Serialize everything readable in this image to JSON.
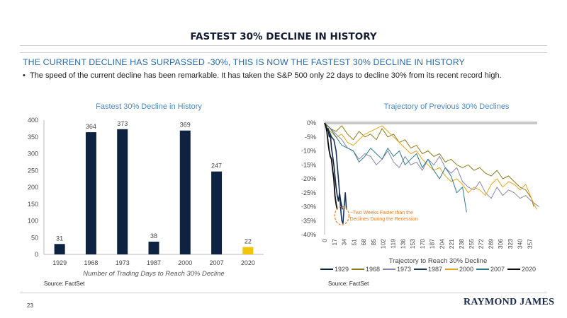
{
  "header": {
    "title": "FASTEST 30% DECLINE IN HISTORY",
    "subtitle": "THE CURRENT DECLINE HAS SURPASSED -30%, THIS IS NOW THE FASTEST 30% DECLINE IN HISTORY",
    "bullet": "The speed of the current decline has been remarkable. It has taken the S&P 500 only 22 days to decline 30% from its recent record high."
  },
  "colors": {
    "navy": "#0e2341",
    "gold": "#f1c40f",
    "accent_blue": "#2b6aa8",
    "zero_line": "#c8c8c8"
  },
  "footer": {
    "page_number": "23",
    "logo_text": "RAYMOND JAMES"
  },
  "chart_data": [
    {
      "type": "bar",
      "title": "Fastest 30% Decline in History",
      "xlabel": "Number of Trading Days to Reach 30% Decline",
      "ylabel": "",
      "categories": [
        "1929",
        "1968",
        "1973",
        "1987",
        "2000",
        "2007",
        "2020"
      ],
      "values": [
        31,
        364,
        373,
        38,
        369,
        247,
        22
      ],
      "data_labels": [
        "31",
        "364",
        "373",
        "38",
        "369",
        "247",
        "22"
      ],
      "bar_colors": [
        "#0e2341",
        "#0e2341",
        "#0e2341",
        "#0e2341",
        "#0e2341",
        "#0e2341",
        "#f1c40f"
      ],
      "ylim": [
        0,
        400
      ],
      "yticks": [
        "0",
        "50",
        "100",
        "150",
        "200",
        "250",
        "300",
        "350",
        "400"
      ],
      "grid": false,
      "source": "Source: FactSet"
    },
    {
      "type": "line",
      "title": "Trajectory of Previous 30% Declines",
      "xlabel": "Trajectory to Reach 30% Decline",
      "ylabel": "",
      "xlim": [
        0,
        370
      ],
      "ylim": [
        -40,
        0
      ],
      "xticks": [
        "0",
        "17",
        "34",
        "51",
        "68",
        "85",
        "102",
        "119",
        "136",
        "153",
        "170",
        "187",
        "204",
        "221",
        "238",
        "255",
        "272",
        "289",
        "306",
        "323",
        "340",
        "357"
      ],
      "yticks": [
        "0%",
        "-5%",
        "-10%",
        "-15%",
        "-20%",
        "-25%",
        "-30%",
        "-35%",
        "-40%"
      ],
      "legend_position": "bottom",
      "annotation": "~Two Weeks Faster than the Declines During the Recession",
      "source": "Source: FactSet",
      "series": [
        {
          "name": "1929",
          "color": "#0e2341",
          "width": 1.6,
          "x": [
            0,
            2,
            4,
            6,
            8,
            10,
            12,
            14,
            16,
            18,
            20,
            22,
            24,
            26,
            28,
            31
          ],
          "y": [
            0,
            -1,
            -3,
            -2,
            -5,
            -4,
            -9,
            -12,
            -15,
            -19,
            -23,
            -26,
            -28,
            -25,
            -28,
            -31
          ]
        },
        {
          "name": "1968",
          "color": "#8a7a1c",
          "width": 1.0,
          "x": [
            0,
            10,
            20,
            30,
            40,
            50,
            60,
            70,
            80,
            90,
            100,
            110,
            120,
            130,
            140,
            150,
            160,
            170,
            180,
            190,
            200,
            210,
            220,
            230,
            240,
            250,
            260,
            270,
            280,
            290,
            300,
            310,
            320,
            330,
            340,
            350,
            360,
            364
          ],
          "y": [
            0,
            -2,
            -3,
            -1,
            -4,
            -6,
            -3,
            -5,
            -4,
            -6,
            -2,
            -5,
            -4,
            -7,
            -6,
            -9,
            -8,
            -11,
            -10,
            -12,
            -11,
            -14,
            -13,
            -15,
            -16,
            -15,
            -17,
            -16,
            -18,
            -19,
            -17,
            -20,
            -19,
            -21,
            -23,
            -24,
            -27,
            -30
          ]
        },
        {
          "name": "1973",
          "color": "#8a84a8",
          "width": 1.0,
          "x": [
            0,
            10,
            20,
            30,
            40,
            50,
            60,
            70,
            80,
            90,
            100,
            110,
            120,
            130,
            140,
            150,
            160,
            170,
            180,
            190,
            200,
            210,
            220,
            230,
            240,
            250,
            260,
            270,
            280,
            290,
            300,
            310,
            320,
            330,
            340,
            350,
            360,
            373
          ],
          "y": [
            0,
            -2,
            -4,
            -6,
            -9,
            -10,
            -13,
            -11,
            -12,
            -15,
            -13,
            -10,
            -14,
            -16,
            -12,
            -15,
            -14,
            -17,
            -13,
            -15,
            -12,
            -16,
            -18,
            -16,
            -21,
            -23,
            -24,
            -21,
            -25,
            -27,
            -23,
            -26,
            -24,
            -25,
            -27,
            -26,
            -28,
            -30
          ]
        },
        {
          "name": "1987",
          "color": "#16345a",
          "width": 1.6,
          "x": [
            0,
            4,
            8,
            12,
            16,
            18,
            20,
            22,
            24,
            26,
            28,
            30,
            32,
            34,
            36,
            38
          ],
          "y": [
            0,
            -2,
            -3,
            -5,
            -6,
            -8,
            -10,
            -15,
            -20,
            -25,
            -31,
            -35,
            -36,
            -30,
            -25,
            -31
          ]
        },
        {
          "name": "2000",
          "color": "#e2a623",
          "width": 1.0,
          "x": [
            0,
            10,
            20,
            30,
            40,
            50,
            60,
            70,
            80,
            90,
            100,
            110,
            120,
            130,
            140,
            150,
            160,
            170,
            180,
            190,
            200,
            210,
            220,
            230,
            240,
            250,
            260,
            270,
            280,
            290,
            300,
            310,
            320,
            330,
            340,
            350,
            360,
            369
          ],
          "y": [
            0,
            -3,
            -5,
            -4,
            -7,
            -8,
            -6,
            -4,
            -3,
            -2,
            -1,
            -3,
            -5,
            -7,
            -9,
            -11,
            -10,
            -13,
            -15,
            -17,
            -16,
            -19,
            -21,
            -20,
            -22,
            -25,
            -23,
            -24,
            -26,
            -22,
            -20,
            -23,
            -21,
            -22,
            -24,
            -22,
            -27,
            -31
          ]
        },
        {
          "name": "2007",
          "color": "#2e7a8a",
          "width": 1.0,
          "x": [
            0,
            10,
            20,
            30,
            40,
            50,
            60,
            70,
            80,
            90,
            100,
            110,
            120,
            130,
            140,
            150,
            160,
            170,
            180,
            190,
            200,
            210,
            220,
            230,
            240,
            247
          ],
          "y": [
            0,
            -2,
            -5,
            -8,
            -9,
            -10,
            -14,
            -12,
            -9,
            -11,
            -13,
            -9,
            -12,
            -10,
            -15,
            -13,
            -11,
            -16,
            -13,
            -17,
            -20,
            -16,
            -19,
            -25,
            -23,
            -32
          ]
        },
        {
          "name": "2020",
          "color": "#0a0a0a",
          "width": 1.8,
          "x": [
            0,
            2,
            4,
            6,
            8,
            10,
            12,
            14,
            16,
            18,
            20,
            22
          ],
          "y": [
            0,
            -1,
            -3,
            -7,
            -10,
            -12,
            -13,
            -17,
            -20,
            -26,
            -29,
            -31
          ]
        }
      ]
    }
  ]
}
